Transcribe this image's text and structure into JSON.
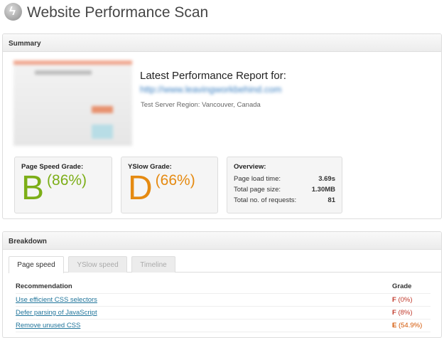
{
  "page": {
    "title": "Website Performance Scan",
    "logo_icon": "lightning-bolt-icon"
  },
  "summary": {
    "header": "Summary",
    "report_heading": "Latest Performance Report for:",
    "report_url": "http://www.leavingworkbehind.com",
    "region": "Test Server Region: Vancouver, Canada",
    "page_speed": {
      "label": "Page Speed Grade:",
      "grade": "B",
      "percent": "(86%)",
      "color": "#7cae17"
    },
    "yslow": {
      "label": "YSlow Grade:",
      "grade": "D",
      "percent": "(66%)",
      "color": "#e58a11"
    },
    "overview": {
      "label": "Overview:",
      "rows": [
        {
          "k": "Page load time:",
          "v": "3.69s"
        },
        {
          "k": "Total page size:",
          "v": "1.30MB"
        },
        {
          "k": "Total no. of requests:",
          "v": "81"
        }
      ]
    }
  },
  "breakdown": {
    "header": "Breakdown",
    "tabs": [
      {
        "label": "Page speed",
        "active": true
      },
      {
        "label": "YSlow speed"
      },
      {
        "label": "Timeline"
      }
    ],
    "columns": [
      "Recommendation",
      "Grade"
    ],
    "rows": [
      {
        "rec": "Use efficient CSS selectors",
        "letter": "F",
        "pct": "(0%)"
      },
      {
        "rec": "Defer parsing of JavaScript",
        "letter": "F",
        "pct": "(8%)"
      },
      {
        "rec": "Remove unused CSS",
        "letter": "E",
        "pct": "(54.9%)"
      }
    ]
  }
}
